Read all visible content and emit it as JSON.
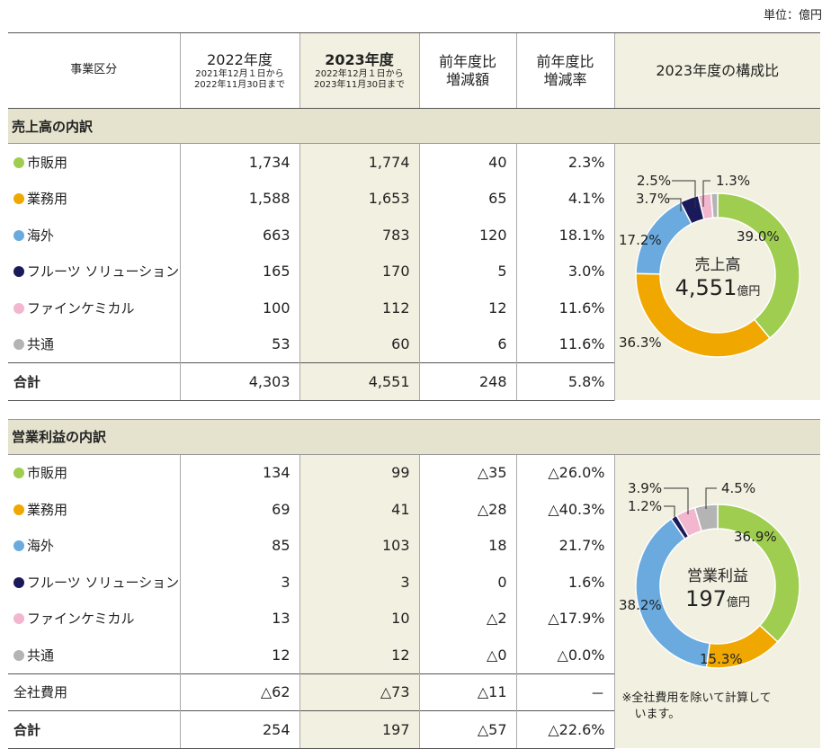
{
  "unit": "単位：億円",
  "header": {
    "segment": "事業区分",
    "y2022": "2022年度",
    "y2022_period_1": "2021年12月１日から",
    "y2022_period_2": "2022年11月30日まで",
    "y2023": "2023年度",
    "y2023_period_1": "2022年12月１日から",
    "y2023_period_2": "2023年11月30日まで",
    "diff_1": "前年度比",
    "diff_2": "増減額",
    "rate_1": "前年度比",
    "rate_2": "増減率",
    "composition": "2023年度の構成比"
  },
  "colors": {
    "retail": "#9fcd4f",
    "commercial": "#f0a800",
    "overseas": "#6aaadf",
    "fruit": "#1a1a5a",
    "fine_chem": "#f2b6cf",
    "common": "#b4b4b4"
  },
  "sales": {
    "title": "売上高の内訳",
    "rows": [
      {
        "label": "市販用",
        "color": "#9fcd4f",
        "v2022": "1,734",
        "v2023": "1,774",
        "diff": "40",
        "rate": "2.3%"
      },
      {
        "label": "業務用",
        "color": "#f0a800",
        "v2022": "1,588",
        "v2023": "1,653",
        "diff": "65",
        "rate": "4.1%"
      },
      {
        "label": "海外",
        "color": "#6aaadf",
        "v2022": "663",
        "v2023": "783",
        "diff": "120",
        "rate": "18.1%"
      },
      {
        "label": "フルーツ ソリューション",
        "color": "#1a1a5a",
        "v2022": "165",
        "v2023": "170",
        "diff": "5",
        "rate": "3.0%"
      },
      {
        "label": "ファインケミカル",
        "color": "#f2b6cf",
        "v2022": "100",
        "v2023": "112",
        "diff": "12",
        "rate": "11.6%"
      },
      {
        "label": "共通",
        "color": "#b4b4b4",
        "v2022": "53",
        "v2023": "60",
        "diff": "6",
        "rate": "11.6%"
      }
    ],
    "total": {
      "label": "合計",
      "v2022": "4,303",
      "v2023": "4,551",
      "diff": "248",
      "rate": "5.8%"
    },
    "donut": {
      "center_1": "売上高",
      "center_value": "4,551",
      "center_unit": "億円",
      "slices": [
        {
          "pct": 39.0,
          "label": "39.0%",
          "color": "#9fcd4f"
        },
        {
          "pct": 36.3,
          "label": "36.3%",
          "color": "#f0a800"
        },
        {
          "pct": 17.2,
          "label": "17.2%",
          "color": "#6aaadf"
        },
        {
          "pct": 3.7,
          "label": "3.7%",
          "color": "#1a1a5a"
        },
        {
          "pct": 2.5,
          "label": "2.5%",
          "color": "#f2b6cf"
        },
        {
          "pct": 1.3,
          "label": "1.3%",
          "color": "#b4b4b4"
        }
      ]
    }
  },
  "profit": {
    "title": "営業利益の内訳",
    "rows": [
      {
        "label": "市販用",
        "color": "#9fcd4f",
        "v2022": "134",
        "v2023": "99",
        "diff": "△35",
        "rate": "△26.0%"
      },
      {
        "label": "業務用",
        "color": "#f0a800",
        "v2022": "69",
        "v2023": "41",
        "diff": "△28",
        "rate": "△40.3%"
      },
      {
        "label": "海外",
        "color": "#6aaadf",
        "v2022": "85",
        "v2023": "103",
        "diff": "18",
        "rate": "21.7%"
      },
      {
        "label": "フルーツ ソリューション",
        "color": "#1a1a5a",
        "v2022": "3",
        "v2023": "3",
        "diff": "0",
        "rate": "1.6%"
      },
      {
        "label": "ファインケミカル",
        "color": "#f2b6cf",
        "v2022": "13",
        "v2023": "10",
        "diff": "△2",
        "rate": "△17.9%"
      },
      {
        "label": "共通",
        "color": "#b4b4b4",
        "v2022": "12",
        "v2023": "12",
        "diff": "△0",
        "rate": "△0.0%"
      }
    ],
    "corporate": {
      "label": "全社費用",
      "v2022": "△62",
      "v2023": "△73",
      "diff": "△11",
      "rate": "－"
    },
    "total": {
      "label": "合計",
      "v2022": "254",
      "v2023": "197",
      "diff": "△57",
      "rate": "△22.6%"
    },
    "note_1": "※全社費用を除いて計算して",
    "note_2": "います。",
    "donut": {
      "center_1": "営業利益",
      "center_value": "197",
      "center_unit": "億円",
      "slices": [
        {
          "pct": 36.9,
          "label": "36.9%",
          "color": "#9fcd4f"
        },
        {
          "pct": 15.3,
          "label": "15.3%",
          "color": "#f0a800"
        },
        {
          "pct": 38.2,
          "label": "38.2%",
          "color": "#6aaadf"
        },
        {
          "pct": 1.2,
          "label": "1.2%",
          "color": "#1a1a5a"
        },
        {
          "pct": 3.9,
          "label": "3.9%",
          "color": "#f2b6cf"
        },
        {
          "pct": 4.5,
          "label": "4.5%",
          "color": "#b4b4b4"
        }
      ]
    }
  }
}
